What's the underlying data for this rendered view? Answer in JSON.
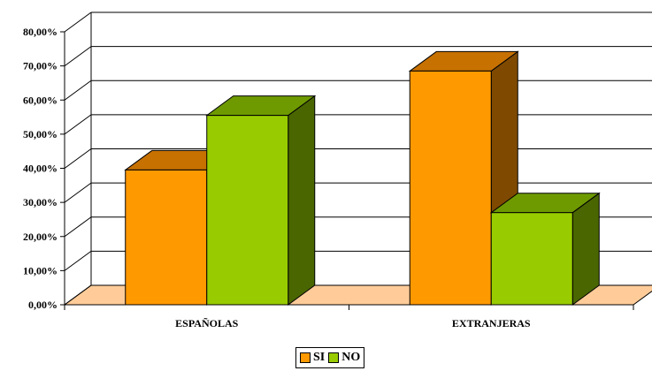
{
  "chart_data": {
    "type": "bar",
    "categories": [
      "ESPAÑOLAS",
      "EXTRANJERAS"
    ],
    "series": [
      {
        "name": "SI",
        "values": [
          39.5,
          68.5
        ],
        "color": "#FF9900",
        "top_color": "#C67100",
        "side_color": "#7F4A00"
      },
      {
        "name": "NO",
        "values": [
          55.5,
          27.0
        ],
        "color": "#99CC00",
        "top_color": "#6E9A00",
        "side_color": "#4A6600"
      }
    ],
    "ylim": [
      0,
      80
    ],
    "yticks": [
      "0,00%",
      "10,00%",
      "20,00%",
      "30,00%",
      "40,00%",
      "50,00%",
      "60,00%",
      "70,00%",
      "80,00%"
    ],
    "title": "",
    "xlabel": "",
    "ylabel": "",
    "grid": true,
    "legend_position": "bottom",
    "floor_color": "#FFCC99"
  }
}
